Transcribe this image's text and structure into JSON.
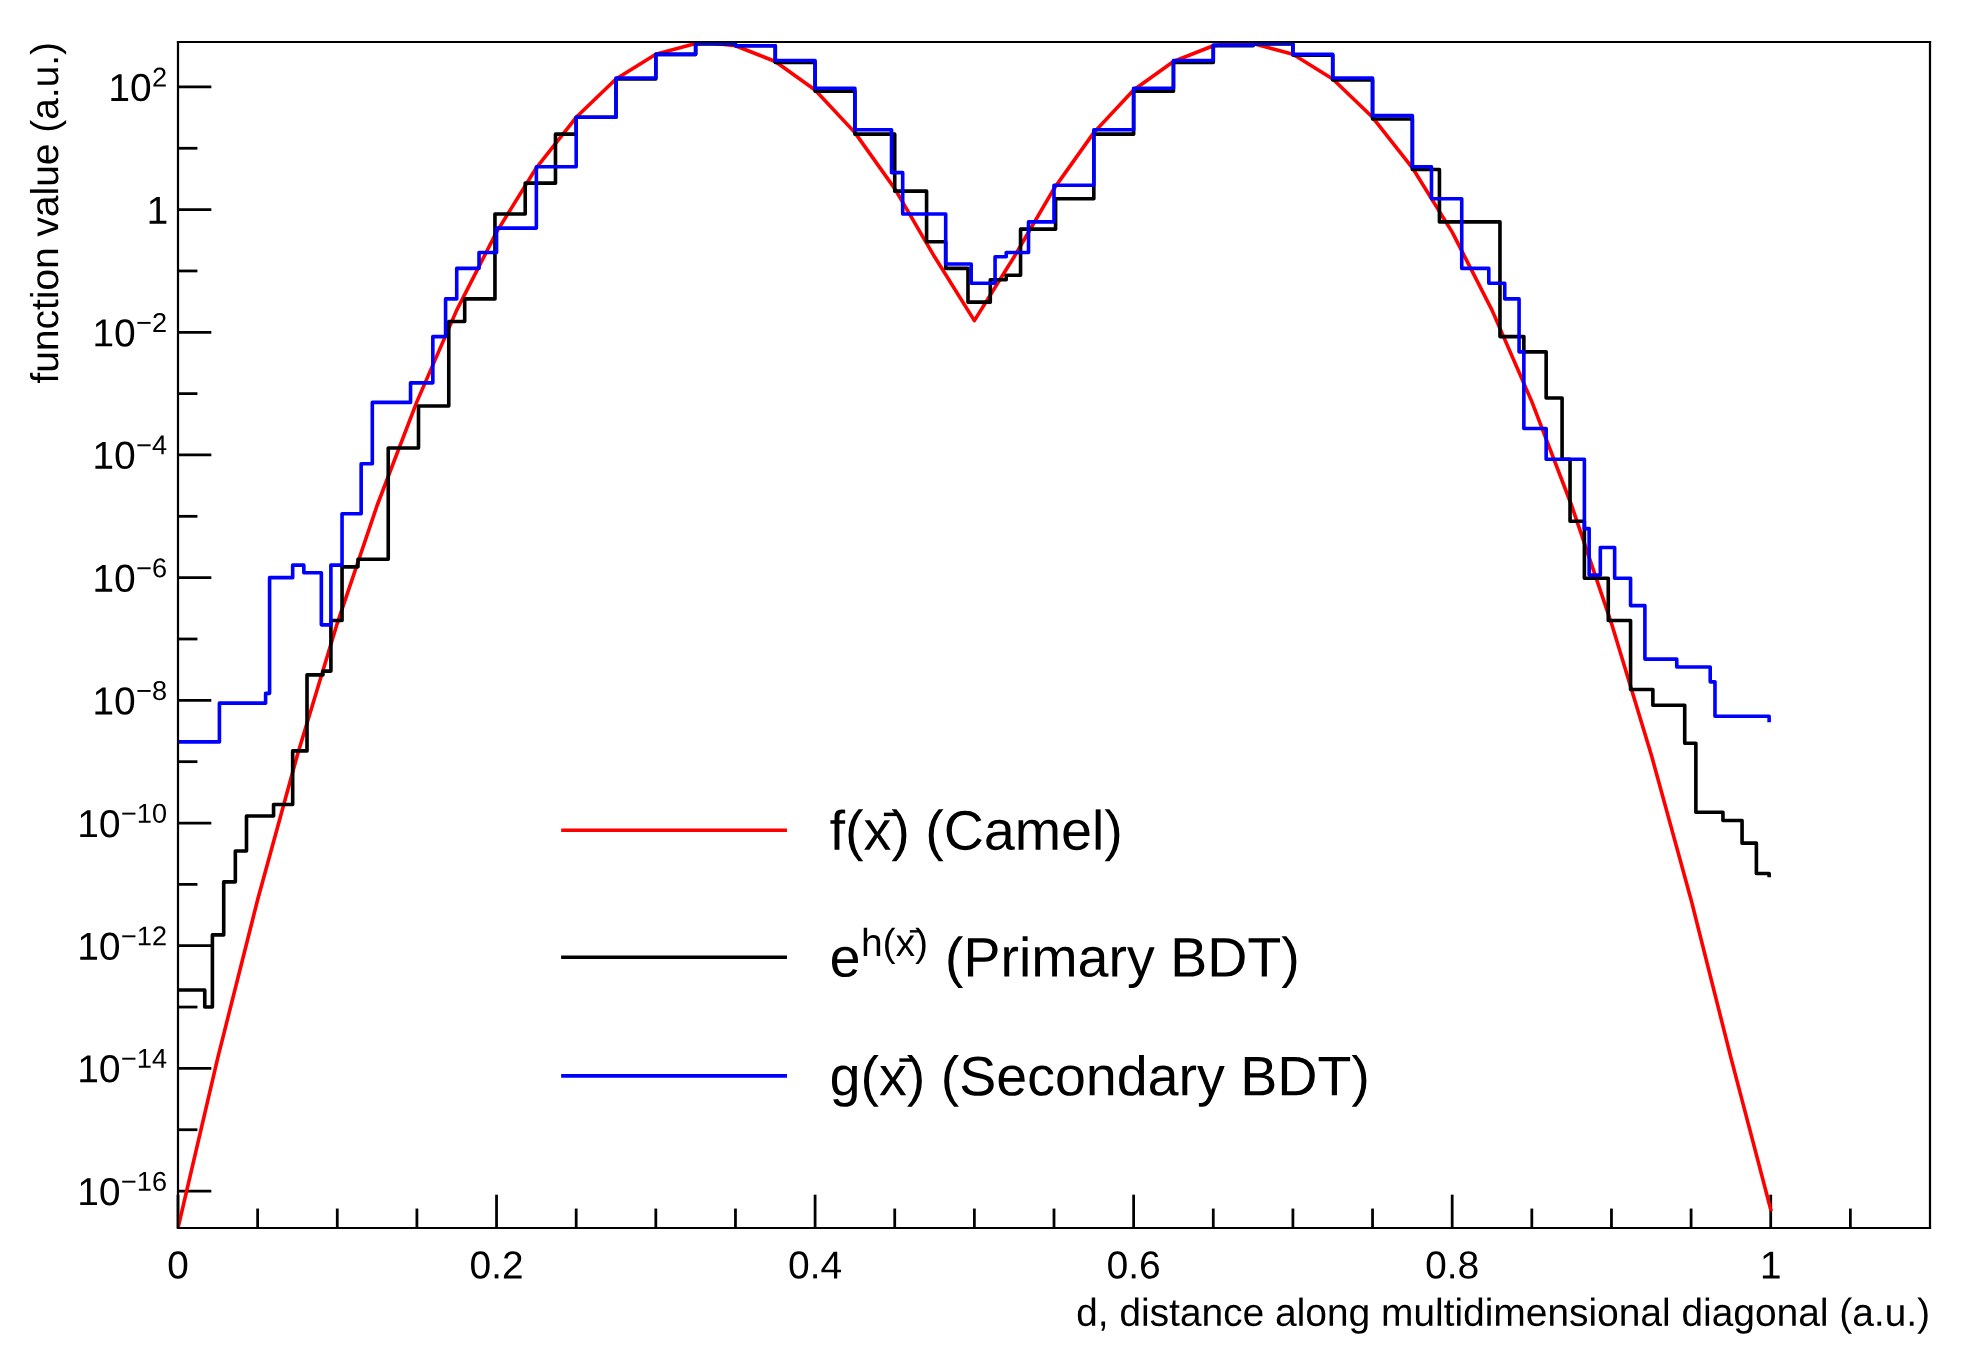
{
  "chart_data": {
    "type": "step",
    "xlabel": "d, distance along multidimensional diagonal (a.u.)",
    "ylabel": "function value (a.u.)",
    "log": "y",
    "grid": false,
    "legend": "bottom",
    "marker": "none",
    "line_style": "solid",
    "xlim": [
      0,
      1.1
    ],
    "ylim": [
      2.5e-17,
      540
    ],
    "xticks": [
      0,
      {
        "value": 0.05,
        "label": null
      },
      {
        "value": 0.1,
        "label": null
      },
      {
        "value": 0.15,
        "label": null
      },
      0.2,
      {
        "value": 0.25,
        "label": null
      },
      {
        "value": 0.3,
        "label": null
      },
      {
        "value": 0.35,
        "label": null
      },
      0.4,
      {
        "value": 0.45,
        "label": null
      },
      {
        "value": 0.5,
        "label": null
      },
      {
        "value": 0.55,
        "label": null
      },
      0.6,
      {
        "value": 0.65,
        "label": null
      },
      {
        "value": 0.7,
        "label": null
      },
      {
        "value": 0.75,
        "label": null
      },
      0.8,
      {
        "value": 0.85,
        "label": null
      },
      {
        "value": 0.9,
        "label": null
      },
      {
        "value": 0.95,
        "label": null
      },
      1,
      {
        "value": 1.05,
        "label": null
      }
    ],
    "yticks": [
      {
        "value": 1e-16,
        "label": "10$^{−16}$"
      },
      {
        "value": 1e-15,
        "label": null
      },
      {
        "value": 1e-14,
        "label": "10$^{−14}$"
      },
      {
        "value": 1e-13,
        "label": null
      },
      {
        "value": 1e-12,
        "label": "10$^{−12}$"
      },
      {
        "value": 1e-11,
        "label": null
      },
      {
        "value": 1e-10,
        "label": "10$^{−10}$"
      },
      {
        "value": 1e-09,
        "label": null
      },
      {
        "value": 1e-08,
        "label": "10$^{−8}$"
      },
      {
        "value": 1e-07,
        "label": null
      },
      {
        "value": 1e-06,
        "label": "10$^{−6}$"
      },
      {
        "value": 1e-05,
        "label": null
      },
      {
        "value": 0.0001,
        "label": "10$^{−4}$"
      },
      {
        "value": 0.001,
        "label": null
      },
      {
        "value": 0.01,
        "label": "10$^{−2}$"
      },
      {
        "value": 0.1,
        "label": null
      },
      1,
      {
        "value": 10,
        "label": null
      },
      {
        "value": 100,
        "label": "10$^{2}$"
      }
    ],
    "series": [
      {
        "name": "f(x̄) (Camel)",
        "color": "#ff0000",
        "type": "line",
        "x": [
          0,
          0.025,
          0.05,
          0.075,
          0.1,
          0.125,
          0.15,
          0.175,
          0.2,
          0.225,
          0.25,
          0.275,
          0.3,
          0.325,
          0.3333,
          0.35,
          0.375,
          0.4,
          0.425,
          0.45,
          0.475,
          0.5,
          0.525,
          0.55,
          0.575,
          0.6,
          0.625,
          0.65,
          0.6667,
          0.675,
          0.7,
          0.725,
          0.75,
          0.775,
          0.8,
          0.825,
          0.85,
          0.875,
          0.9,
          0.925,
          0.95,
          0.975,
          1.0
        ],
        "values": [
          2.5e-17,
          1.5e-14,
          5.6e-12,
          1.3e-09,
          1.8e-07,
          1.5e-05,
          0.00074,
          0.023,
          0.43,
          4.8,
          32,
          135,
          340,
          510,
          525,
          470,
          260,
          89,
          18,
          2.2,
          0.17,
          0.0155,
          0.17,
          2.2,
          18,
          89,
          260,
          470,
          525,
          510,
          340,
          135,
          32,
          4.8,
          0.43,
          0.023,
          0.00074,
          1.5e-05,
          1.8e-07,
          1.3e-09,
          5.6e-12,
          1.5e-14,
          5e-17
        ]
      },
      {
        "name": "e$^{h(x̄)}$ (Primary BDT)",
        "color": "#000000",
        "x": [
          0,
          0.0168,
          0.0216,
          0.0287,
          0.036,
          0.043,
          0.06,
          0.072,
          0.081,
          0.091,
          0.096,
          0.103,
          0.113,
          0.132,
          0.151,
          0.17,
          0.18,
          0.199,
          0.218,
          0.237,
          0.25,
          0.275,
          0.3,
          0.325,
          0.35,
          0.375,
          0.4,
          0.425,
          0.45,
          0.47,
          0.482,
          0.496,
          0.51,
          0.52,
          0.529,
          0.551,
          0.575,
          0.6,
          0.625,
          0.65,
          0.675,
          0.7,
          0.725,
          0.75,
          0.775,
          0.792,
          0.83,
          0.845,
          0.859,
          0.869,
          0.874,
          0.883,
          0.898,
          0.912,
          0.926,
          0.946,
          0.953,
          0.97,
          0.982,
          0.991,
          0.999
        ],
        "values": [
          1.9e-13,
          1e-13,
          1.5e-12,
          1.1e-11,
          3.5e-11,
          1.3e-10,
          2e-10,
          1.5e-09,
          2.6e-08,
          3e-08,
          2e-07,
          1.5e-06,
          2e-06,
          0.00013,
          0.00063,
          0.015,
          0.035,
          0.85,
          2.7,
          17,
          32,
          135,
          340,
          500,
          470,
          250,
          85,
          17,
          2.0,
          0.3,
          0.11,
          0.031,
          0.072,
          0.085,
          0.48,
          1.5,
          17,
          85,
          250,
          470,
          500,
          330,
          130,
          30,
          4.5,
          0.63,
          0.0085,
          0.0048,
          0.00085,
          8.5e-05,
          8.3e-06,
          9.8e-07,
          2e-07,
          1.5e-08,
          8.3e-09,
          2e-09,
          1.5e-10,
          1.1e-10,
          4.7e-11,
          1.5e-11,
          1.4e-11
        ]
      },
      {
        "name": "g(x̄) (Secondary BDT)",
        "color": "#0000ff",
        "x": [
          0,
          0.0168,
          0.026,
          0.055,
          0.0575,
          0.072,
          0.079,
          0.0886,
          0.09,
          0.096,
          0.103,
          0.115,
          0.122,
          0.146,
          0.16,
          0.168,
          0.175,
          0.189,
          0.2,
          0.225,
          0.25,
          0.275,
          0.3,
          0.325,
          0.35,
          0.375,
          0.4,
          0.425,
          0.448,
          0.455,
          0.482,
          0.498,
          0.513,
          0.52,
          0.534,
          0.55,
          0.575,
          0.6,
          0.625,
          0.65,
          0.675,
          0.7,
          0.725,
          0.75,
          0.775,
          0.787,
          0.806,
          0.823,
          0.833,
          0.842,
          0.845,
          0.859,
          0.871,
          0.883,
          0.886,
          0.893,
          0.902,
          0.912,
          0.921,
          0.941,
          0.962,
          0.965,
          0.999
        ],
        "values": [
          2.1e-09,
          2.1e-09,
          9e-09,
          1.3e-08,
          1e-06,
          1.6e-06,
          1.2e-06,
          1.2e-06,
          1.7e-07,
          1.6e-06,
          1.1e-05,
          7.2e-05,
          0.00072,
          0.0015,
          0.0085,
          0.035,
          0.11,
          0.2,
          0.5,
          5,
          32,
          140,
          340,
          510,
          470,
          270,
          95,
          20,
          4,
          0.85,
          0.13,
          0.063,
          0.17,
          0.2,
          0.63,
          2.5,
          20,
          95,
          270,
          480,
          510,
          340,
          140,
          34,
          5,
          1.5,
          0.11,
          0.063,
          0.035,
          0.0048,
          0.00027,
          8.5e-05,
          8.5e-05,
          6.3e-06,
          1.1e-06,
          3.1e-06,
          9.8e-07,
          3.5e-07,
          4.7e-08,
          3.5e-08,
          2e-08,
          5.5e-09,
          4.7e-09
        ]
      }
    ]
  }
}
